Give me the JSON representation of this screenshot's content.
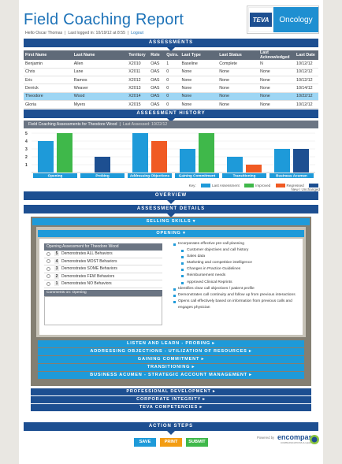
{
  "header": {
    "title": "Field Coaching Report",
    "hello": "Hello Oscar Thomas",
    "last_login": "Last logged in: 10/19/12 at 8:55",
    "logout": "Logout",
    "brand_logo": "TEVA",
    "brand_area": "Oncology"
  },
  "assessments": {
    "band": "ASSESSMENTS",
    "columns": [
      "First Name",
      "Last Name",
      "Territory",
      "Role",
      "Qstrs.",
      "Last Type",
      "Last Status",
      "Last Acknowledged",
      "Last Date"
    ],
    "rows": [
      [
        "Benjamin",
        "Allen",
        "X2010",
        "OAS",
        "1",
        "Baseline",
        "Complete",
        "N",
        "10/12/12"
      ],
      [
        "Chris",
        "Lane",
        "X2011",
        "OAS",
        "0",
        "None",
        "None",
        "None",
        "10/12/12"
      ],
      [
        "Eric",
        "Ramos",
        "X2012",
        "OAS",
        "0",
        "None",
        "None",
        "None",
        "10/12/12"
      ],
      [
        "Derrick",
        "Weaver",
        "X2013",
        "OAS",
        "0",
        "None",
        "None",
        "None",
        "10/14/12"
      ],
      [
        "Theodore",
        "Wood",
        "X2014",
        "OAS",
        "0",
        "None",
        "None",
        "None",
        "10/22/12"
      ],
      [
        "Gloria",
        "Myers",
        "X2015",
        "OAS",
        "0",
        "None",
        "None",
        "None",
        "10/12/12"
      ]
    ],
    "selected_row": 4
  },
  "history": {
    "band": "ASSESSMENT HISTORY",
    "chart_title": "Field Coaching Assessments for Theodore Wood",
    "chart_subtitle": "Last Assessed: 10/22/12",
    "legend_key": "Key:"
  },
  "chart_data": {
    "type": "bar",
    "title": "Field Coaching Assessments for Theodore Wood",
    "subtitle": "Last Assessed: 10/22/12",
    "categories": [
      "Opening",
      "Probing",
      "Addressing Objections",
      "Gaining Commitment",
      "Transitioning",
      "Business Acumen"
    ],
    "ylim": [
      0,
      5
    ],
    "yticks": [
      1,
      2,
      3,
      4,
      5
    ],
    "legend_position": "bottom-right",
    "series": [
      {
        "name": "Last Assessment",
        "color": "#1e9ad9",
        "values": [
          4,
          null,
          5,
          3,
          2,
          3
        ]
      },
      {
        "name": "Improved",
        "color": "#3fb84a",
        "values": [
          5,
          null,
          null,
          5,
          null,
          null
        ]
      },
      {
        "name": "Regressed",
        "color": "#f05a23",
        "values": [
          null,
          null,
          4,
          null,
          1,
          null
        ]
      },
      {
        "name": "New / Unchanged",
        "color": "#1d4f91",
        "values": [
          null,
          2,
          null,
          null,
          null,
          3
        ]
      }
    ]
  },
  "overview": {
    "band": "OVERVIEW"
  },
  "details": {
    "band": "ASSESSMENT DETAILS",
    "selling_skills": "SELLING SKILLS",
    "opening": "OPENING",
    "opening_table_title": "Opening Assessment for Theodore Wood",
    "options": [
      {
        "num": "5",
        "label": "Demonstrates ALL Behaviors"
      },
      {
        "num": "4",
        "label": "Demonstrates MOST Behaviors"
      },
      {
        "num": "3",
        "label": "Demonstrates SOME Behaviors"
      },
      {
        "num": "2",
        "label": "Demonstrates FEW Behaviors"
      },
      {
        "num": "1",
        "label": "Demonstrates NO Behaviors"
      }
    ],
    "comments_label": "Comments on: Opening",
    "bullets": [
      {
        "level": 1,
        "text": "Incorporates effective pre-call planning"
      },
      {
        "level": 2,
        "text": "Customer objectives and call history"
      },
      {
        "level": 2,
        "text": "Sales data"
      },
      {
        "level": 2,
        "text": "Marketing and competitive intelligence"
      },
      {
        "level": 2,
        "text": "Changes in Practice Guidelines"
      },
      {
        "level": 2,
        "text": "Reimbursement needs"
      },
      {
        "level": 2,
        "text": "Approved Clinical Reprints"
      },
      {
        "level": 1,
        "text": "Identifies clear call objectives / patient profile"
      },
      {
        "level": 1,
        "text": "Demonstrates call continuity and follow up from previous interactions"
      },
      {
        "level": 1,
        "text": "Opens call effectively based on information from previous calls and engages physician"
      }
    ],
    "sections": [
      "LISTEN AND LEARN - PROBING",
      "ADDRESSING OBJECTIONS - UTILIZATION OF RESOURCES",
      "GAINING COMMITMENT",
      "TRANSITIONING",
      "BUSINESS ACUMEN - STRATEGIC ACCOUNT MANAGEMENT"
    ],
    "outer_sections": [
      "PROFESSIONAL DEVELOPMENT",
      "CORPORATE INTEGRITY",
      "TEVA COMPETENCIES"
    ]
  },
  "actions": {
    "band": "ACTION STEPS",
    "save": "SAVE",
    "print": "PRINT",
    "submit": "SUBMIT",
    "powered_by": "Powered by",
    "powered_logo": "encompass",
    "powered_logo_sub": "COMMUNICATIONS & LEARNING",
    "save_color": "#1e9ad9",
    "print_color": "#f39c12",
    "submit_color": "#3fb84a"
  }
}
